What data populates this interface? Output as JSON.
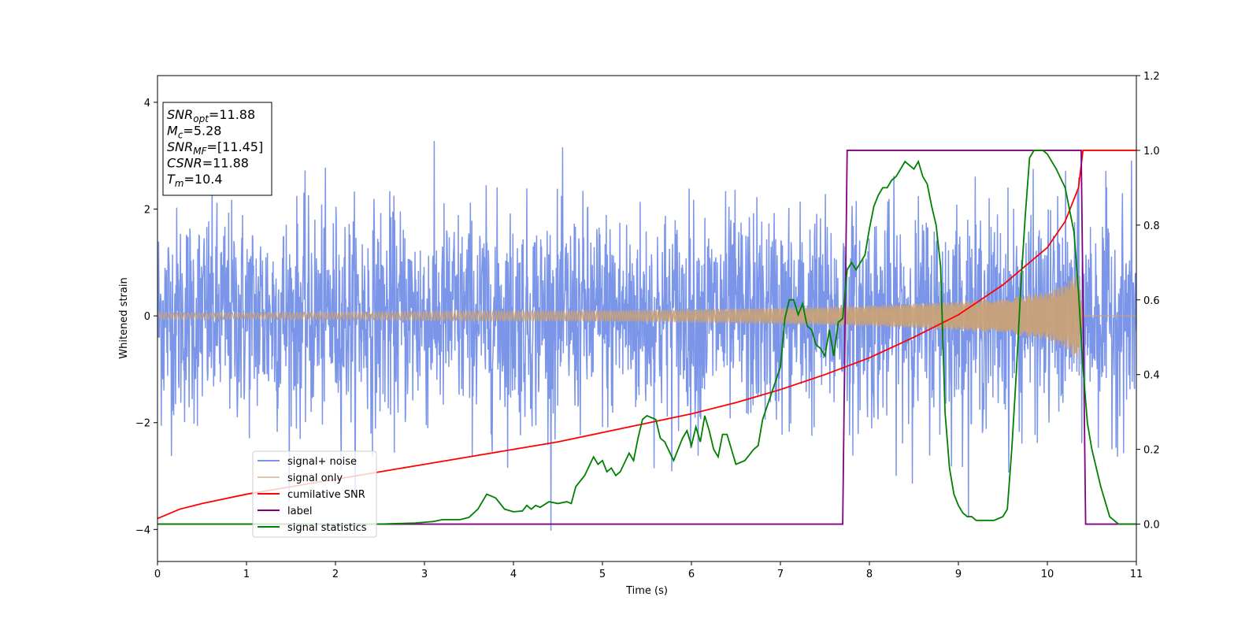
{
  "chart_data": {
    "type": "line",
    "xlabel": "Time (s)",
    "ylabel": "Whitened strain",
    "y2label": "",
    "xlim": [
      0,
      11
    ],
    "ylim": [
      -4.6,
      4.5
    ],
    "y2lim": [
      -0.1,
      1.2
    ],
    "xticks": [
      "0",
      "1",
      "2",
      "3",
      "4",
      "5",
      "6",
      "7",
      "8",
      "9",
      "10",
      "11"
    ],
    "yticks": [
      "−4",
      "−2",
      "0",
      "2",
      "4"
    ],
    "y2ticks": [
      "0.0",
      "0.2",
      "0.4",
      "0.6",
      "0.8",
      "1.0",
      "1.2"
    ],
    "grid": false,
    "legend": {
      "placement": "lower-left",
      "entries": [
        "signal+ noise",
        "signal only",
        "cumilative SNR",
        "label",
        "signal statistics"
      ]
    },
    "annotation": {
      "lines": [
        {
          "main": "SNR",
          "sub": "opt",
          "rest": "=11.88"
        },
        {
          "main": "M",
          "sub": "c",
          "rest": "=5.28"
        },
        {
          "main": "SNR",
          "sub": "MF",
          "rest": "=[11.45]"
        },
        {
          "main": "CSNR",
          "sub": "",
          "rest": "=11.88"
        },
        {
          "main": "T",
          "sub": "m",
          "rest": "=10.4"
        }
      ]
    },
    "series": [
      {
        "name": "signal+ noise",
        "axis": "left",
        "color": "#7b95e8",
        "kind": "noise",
        "sigma": 1.0,
        "amplitude_range": [
          -4.05,
          4.1
        ],
        "x_range": [
          0,
          11
        ]
      },
      {
        "name": "signal only",
        "axis": "left",
        "color": "#c9a177",
        "kind": "chirp_envelope",
        "x": [
          0,
          1,
          2,
          3,
          4,
          5,
          6,
          7,
          8,
          9,
          9.5,
          10,
          10.2,
          10.35,
          10.4,
          11
        ],
        "envelope": [
          0.06,
          0.06,
          0.07,
          0.08,
          0.09,
          0.1,
          0.12,
          0.15,
          0.19,
          0.27,
          0.33,
          0.45,
          0.6,
          0.85,
          0.0,
          0.0
        ]
      },
      {
        "name": "cumilative SNR",
        "axis": "right",
        "color": "#ff0000",
        "x": [
          0,
          0.25,
          0.5,
          1,
          1.5,
          2,
          2.5,
          3,
          3.5,
          4,
          4.5,
          5,
          5.5,
          6,
          6.5,
          7,
          7.5,
          8,
          8.5,
          9,
          9.5,
          10,
          10.2,
          10.35,
          10.4,
          11
        ],
        "values": [
          0.015,
          0.04,
          0.055,
          0.08,
          0.1,
          0.12,
          0.14,
          0.16,
          0.18,
          0.2,
          0.22,
          0.245,
          0.27,
          0.295,
          0.325,
          0.36,
          0.4,
          0.445,
          0.5,
          0.56,
          0.64,
          0.74,
          0.81,
          0.9,
          1.0,
          1.0
        ]
      },
      {
        "name": "label",
        "axis": "right",
        "color": "#800080",
        "x": [
          0,
          7.7,
          7.75,
          10.38,
          10.43,
          11
        ],
        "values": [
          0.0,
          0.0,
          1.0,
          1.0,
          0.0,
          0.0
        ]
      },
      {
        "name": "signal statistics",
        "axis": "right",
        "color": "#008000",
        "x": [
          0,
          1,
          2,
          2.5,
          2.9,
          3.1,
          3.2,
          3.4,
          3.5,
          3.6,
          3.7,
          3.8,
          3.9,
          4.0,
          4.1,
          4.15,
          4.2,
          4.25,
          4.3,
          4.4,
          4.5,
          4.6,
          4.65,
          4.7,
          4.8,
          4.9,
          4.95,
          5.0,
          5.05,
          5.1,
          5.15,
          5.2,
          5.3,
          5.35,
          5.4,
          5.45,
          5.5,
          5.6,
          5.65,
          5.7,
          5.8,
          5.9,
          5.95,
          6.0,
          6.05,
          6.1,
          6.15,
          6.2,
          6.25,
          6.3,
          6.35,
          6.4,
          6.5,
          6.6,
          6.7,
          6.75,
          6.8,
          6.9,
          7.0,
          7.05,
          7.1,
          7.15,
          7.2,
          7.25,
          7.3,
          7.35,
          7.4,
          7.45,
          7.5,
          7.55,
          7.6,
          7.65,
          7.7,
          7.75,
          7.8,
          7.85,
          7.9,
          7.95,
          8.0,
          8.05,
          8.1,
          8.15,
          8.2,
          8.25,
          8.3,
          8.35,
          8.4,
          8.45,
          8.5,
          8.55,
          8.6,
          8.65,
          8.7,
          8.75,
          8.8,
          8.85,
          8.9,
          8.95,
          9.0,
          9.05,
          9.1,
          9.15,
          9.2,
          9.3,
          9.4,
          9.5,
          9.55,
          9.6,
          9.65,
          9.7,
          9.75,
          9.8,
          9.85,
          9.9,
          9.95,
          10.0,
          10.05,
          10.1,
          10.2,
          10.3,
          10.35,
          10.4,
          10.45,
          10.5,
          10.6,
          10.7,
          10.8,
          10.9,
          11.0
        ],
        "values": [
          0.0,
          0.0,
          0.0,
          0.0,
          0.003,
          0.007,
          0.012,
          0.012,
          0.018,
          0.04,
          0.08,
          0.07,
          0.04,
          0.033,
          0.035,
          0.05,
          0.04,
          0.05,
          0.045,
          0.06,
          0.055,
          0.06,
          0.055,
          0.1,
          0.13,
          0.18,
          0.16,
          0.17,
          0.14,
          0.15,
          0.13,
          0.14,
          0.19,
          0.17,
          0.23,
          0.28,
          0.29,
          0.28,
          0.23,
          0.22,
          0.17,
          0.23,
          0.25,
          0.21,
          0.26,
          0.22,
          0.29,
          0.25,
          0.2,
          0.18,
          0.24,
          0.24,
          0.16,
          0.17,
          0.2,
          0.21,
          0.28,
          0.35,
          0.42,
          0.55,
          0.6,
          0.6,
          0.56,
          0.59,
          0.53,
          0.52,
          0.48,
          0.47,
          0.45,
          0.52,
          0.45,
          0.54,
          0.55,
          0.68,
          0.7,
          0.68,
          0.7,
          0.72,
          0.79,
          0.85,
          0.88,
          0.9,
          0.9,
          0.92,
          0.93,
          0.95,
          0.97,
          0.96,
          0.95,
          0.97,
          0.93,
          0.91,
          0.85,
          0.8,
          0.69,
          0.3,
          0.15,
          0.08,
          0.05,
          0.03,
          0.02,
          0.02,
          0.01,
          0.01,
          0.01,
          0.02,
          0.04,
          0.2,
          0.4,
          0.63,
          0.82,
          0.98,
          1.0,
          1.0,
          1.0,
          0.99,
          0.97,
          0.95,
          0.9,
          0.78,
          0.62,
          0.42,
          0.27,
          0.2,
          0.1,
          0.02,
          0.0,
          0.0,
          0.0
        ]
      }
    ]
  }
}
